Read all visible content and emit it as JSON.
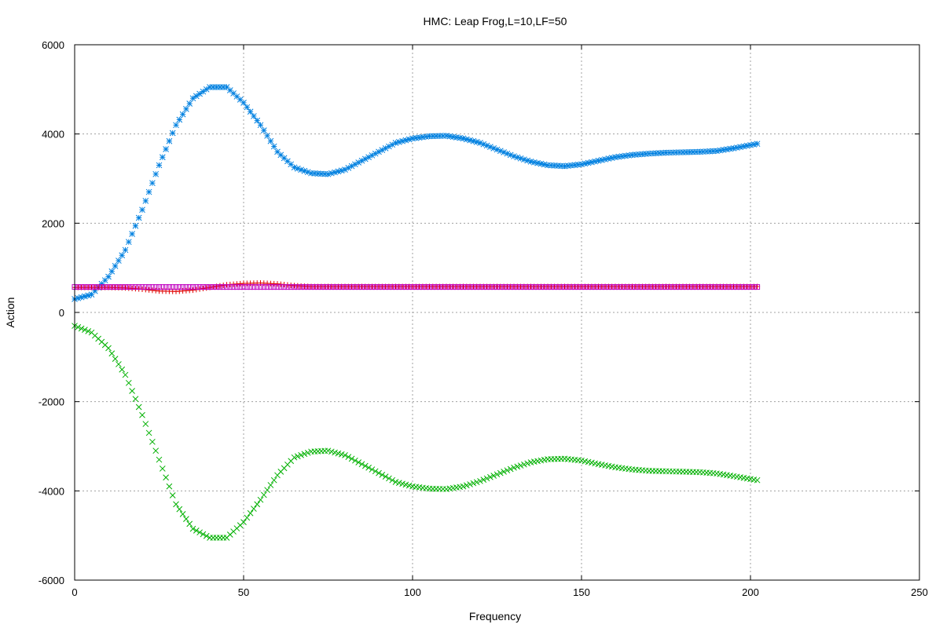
{
  "chart_data": {
    "type": "scatter",
    "title": "HMC: Leap Frog,L=10,LF=50",
    "xlabel": "Frequency",
    "ylabel": "Action",
    "xlim": [
      0,
      250
    ],
    "ylim": [
      -6000,
      6000
    ],
    "xticks": [
      "0",
      "50",
      "100",
      "150",
      "200",
      "250"
    ],
    "yticks": [
      "-6000",
      "-4000",
      "-2000",
      "0",
      "2000",
      "4000",
      "6000"
    ],
    "grid": true,
    "series": [
      {
        "color": "#0080e0",
        "marker": "star",
        "x": [
          0,
          5,
          10,
          15,
          20,
          25,
          30,
          35,
          40,
          45,
          50,
          55,
          60,
          65,
          70,
          75,
          80,
          85,
          90,
          95,
          100,
          105,
          110,
          115,
          120,
          125,
          130,
          135,
          140,
          145,
          150,
          155,
          160,
          165,
          170,
          175,
          180,
          185,
          190,
          195,
          202
        ],
        "y": [
          300,
          400,
          800,
          1400,
          2300,
          3300,
          4200,
          4800,
          5050,
          5050,
          4700,
          4200,
          3600,
          3250,
          3120,
          3100,
          3200,
          3400,
          3600,
          3800,
          3900,
          3950,
          3960,
          3900,
          3800,
          3650,
          3500,
          3380,
          3300,
          3280,
          3320,
          3400,
          3480,
          3530,
          3560,
          3580,
          3590,
          3600,
          3620,
          3680,
          3780
        ]
      },
      {
        "color": "#00b000",
        "marker": "x",
        "x": [
          0,
          5,
          10,
          15,
          20,
          25,
          30,
          35,
          40,
          45,
          50,
          55,
          60,
          65,
          70,
          75,
          80,
          85,
          90,
          95,
          100,
          105,
          110,
          115,
          120,
          125,
          130,
          135,
          140,
          145,
          150,
          155,
          160,
          165,
          170,
          175,
          180,
          185,
          190,
          195,
          202
        ],
        "y": [
          -300,
          -450,
          -800,
          -1400,
          -2300,
          -3300,
          -4300,
          -4850,
          -5050,
          -5050,
          -4700,
          -4200,
          -3650,
          -3250,
          -3120,
          -3100,
          -3200,
          -3400,
          -3600,
          -3800,
          -3900,
          -3950,
          -3960,
          -3900,
          -3780,
          -3630,
          -3480,
          -3360,
          -3290,
          -3280,
          -3320,
          -3400,
          -3470,
          -3520,
          -3550,
          -3560,
          -3570,
          -3580,
          -3610,
          -3670,
          -3760
        ]
      },
      {
        "color": "#e00000",
        "marker": "plus",
        "x": [
          0,
          5,
          10,
          15,
          20,
          25,
          30,
          35,
          40,
          45,
          50,
          55,
          60,
          65,
          70,
          75,
          80,
          100,
          120,
          140,
          160,
          180,
          202
        ],
        "y": [
          560,
          560,
          560,
          550,
          520,
          480,
          470,
          500,
          560,
          620,
          650,
          660,
          640,
          600,
          580,
          580,
          580,
          580,
          580,
          580,
          580,
          580,
          580
        ]
      },
      {
        "color": "#c000c0",
        "marker": "square",
        "x": [
          0,
          10,
          20,
          30,
          40,
          50,
          60,
          70,
          80,
          90,
          100,
          110,
          120,
          130,
          140,
          150,
          160,
          170,
          180,
          190,
          202
        ],
        "y": [
          570,
          570,
          570,
          570,
          570,
          570,
          570,
          570,
          570,
          570,
          570,
          570,
          570,
          570,
          570,
          570,
          570,
          570,
          570,
          570,
          570
        ]
      }
    ]
  }
}
